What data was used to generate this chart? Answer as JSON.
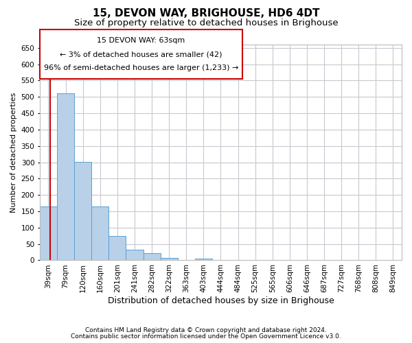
{
  "title": "15, DEVON WAY, BRIGHOUSE, HD6 4DT",
  "subtitle": "Size of property relative to detached houses in Brighouse",
  "xlabel": "Distribution of detached houses by size in Brighouse",
  "ylabel": "Number of detached properties",
  "categories": [
    "39sqm",
    "79sqm",
    "120sqm",
    "160sqm",
    "201sqm",
    "241sqm",
    "282sqm",
    "322sqm",
    "363sqm",
    "403sqm",
    "444sqm",
    "484sqm",
    "525sqm",
    "565sqm",
    "606sqm",
    "646sqm",
    "687sqm",
    "727sqm",
    "768sqm",
    "808sqm",
    "849sqm"
  ],
  "values": [
    165,
    510,
    302,
    165,
    75,
    32,
    22,
    8,
    0,
    5,
    0,
    0,
    0,
    0,
    0,
    0,
    0,
    0,
    0,
    0,
    0
  ],
  "bar_color": "#b8d0e8",
  "bar_edge_color": "#5a9fd4",
  "annotation_box_text_line1": "15 DEVON WAY: 63sqm",
  "annotation_box_text_line2": "← 3% of detached houses are smaller (42)",
  "annotation_box_text_line3": "96% of semi-detached houses are larger (1,233) →",
  "vline_color": "#cc0000",
  "vline_x_pos": 0.6,
  "ylim": [
    0,
    660
  ],
  "yticks": [
    0,
    50,
    100,
    150,
    200,
    250,
    300,
    350,
    400,
    450,
    500,
    550,
    600,
    650
  ],
  "grid_color": "#c8c8d0",
  "background_color": "#ffffff",
  "footer_line1": "Contains HM Land Registry data © Crown copyright and database right 2024.",
  "footer_line2": "Contains public sector information licensed under the Open Government Licence v3.0.",
  "title_fontsize": 11,
  "subtitle_fontsize": 9.5,
  "xlabel_fontsize": 9,
  "ylabel_fontsize": 8,
  "tick_fontsize": 7.5,
  "annotation_fontsize": 8,
  "footer_fontsize": 6.5
}
